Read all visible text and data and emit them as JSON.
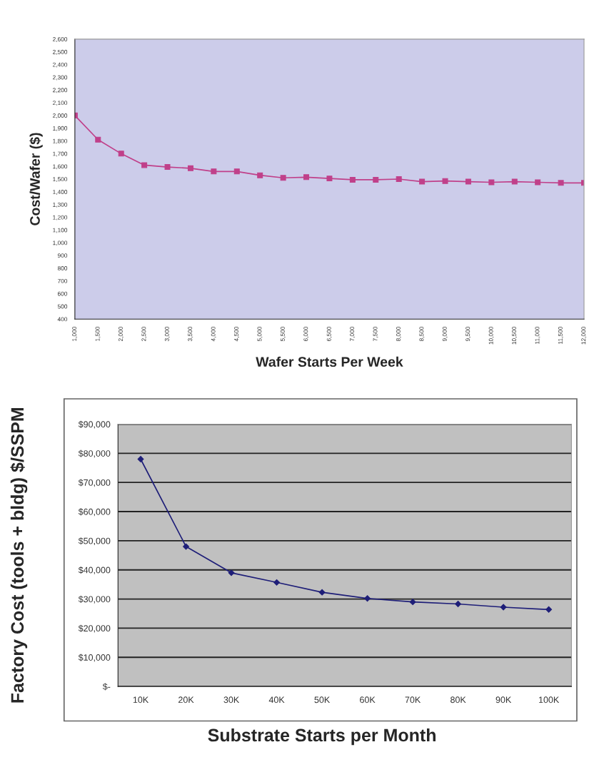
{
  "chart_data": [
    {
      "type": "line",
      "xlabel": "Wafer Starts Per Week",
      "ylabel": "Cost/Wafer ($)",
      "categories": [
        "1,000",
        "1,500",
        "2,000",
        "2,500",
        "3,000",
        "3,500",
        "4,000",
        "4,500",
        "5,000",
        "5,500",
        "6,000",
        "6,500",
        "7,000",
        "7,500",
        "8,000",
        "8,500",
        "9,000",
        "9,500",
        "10,000",
        "10,500",
        "11,000",
        "11,500",
        "12,000"
      ],
      "series": [
        {
          "color": "#c0408a",
          "values": [
            2000,
            1810,
            1700,
            1610,
            1595,
            1585,
            1560,
            1560,
            1530,
            1510,
            1515,
            1505,
            1495,
            1495,
            1500,
            1480,
            1485,
            1480,
            1475,
            1480,
            1475,
            1470,
            1470
          ]
        }
      ],
      "ylim": [
        400,
        2600
      ],
      "yticks": [
        {
          "value": 400,
          "label": "400"
        },
        {
          "value": 500,
          "label": "500"
        },
        {
          "value": 600,
          "label": "600"
        },
        {
          "value": 700,
          "label": "700"
        },
        {
          "value": 800,
          "label": "800"
        },
        {
          "value": 900,
          "label": "900"
        },
        {
          "value": 1000,
          "label": "1,000"
        },
        {
          "value": 1100,
          "label": "1,100"
        },
        {
          "value": 1200,
          "label": "1,200"
        },
        {
          "value": 1300,
          "label": "1,300"
        },
        {
          "value": 1400,
          "label": "1,400"
        },
        {
          "value": 1500,
          "label": "1,500"
        },
        {
          "value": 1600,
          "label": "1,600"
        },
        {
          "value": 1700,
          "label": "1,700"
        },
        {
          "value": 1800,
          "label": "1,800"
        },
        {
          "value": 1900,
          "label": "1,900"
        },
        {
          "value": 2000,
          "label": "2,000"
        },
        {
          "value": 2100,
          "label": "2,100"
        },
        {
          "value": 2200,
          "label": "2,200"
        },
        {
          "value": 2300,
          "label": "2,300"
        },
        {
          "value": 2400,
          "label": "2,400"
        },
        {
          "value": 2500,
          "label": "2,500"
        },
        {
          "value": 2600,
          "label": "2,600"
        }
      ],
      "grid": false,
      "marker": "square",
      "line_style": "solid"
    },
    {
      "type": "line",
      "xlabel": "Substrate Starts per Month",
      "ylabel": "Factory Cost (tools + bldg) $/SSPM",
      "categories": [
        "10K",
        "20K",
        "30K",
        "40K",
        "50K",
        "60K",
        "70K",
        "80K",
        "90K",
        "100K"
      ],
      "series": [
        {
          "color": "#1e1e78",
          "values": [
            78000,
            48000,
            39000,
            35700,
            32300,
            30200,
            29000,
            28300,
            27200,
            26400
          ]
        }
      ],
      "ylim": [
        0,
        90000
      ],
      "yticks": [
        {
          "value": 0,
          "label": "$-"
        },
        {
          "value": 10000,
          "label": "$10,000"
        },
        {
          "value": 20000,
          "label": "$20,000"
        },
        {
          "value": 30000,
          "label": "$30,000"
        },
        {
          "value": 40000,
          "label": "$40,000"
        },
        {
          "value": 50000,
          "label": "$50,000"
        },
        {
          "value": 60000,
          "label": "$60,000"
        },
        {
          "value": 70000,
          "label": "$70,000"
        },
        {
          "value": 80000,
          "label": "$80,000"
        },
        {
          "value": 90000,
          "label": "$90,000"
        }
      ],
      "grid": "y",
      "marker": "diamond",
      "line_style": "solid"
    }
  ]
}
